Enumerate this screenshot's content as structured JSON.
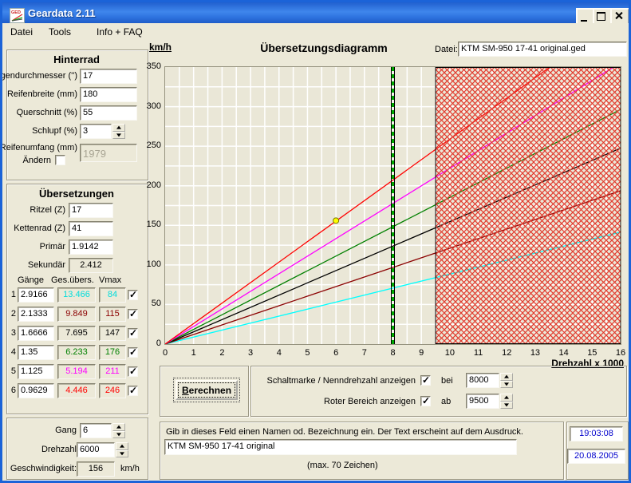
{
  "window": {
    "title": "Geardata 2.11"
  },
  "menu": {
    "items": [
      "Datei",
      "Tools",
      "Info + FAQ"
    ]
  },
  "hinterrad": {
    "title": "Hinterrad",
    "felgendurchmesser": {
      "label": "Felgendurchmesser ('')",
      "value": "17"
    },
    "reifenbreite": {
      "label": "Reifenbreite (mm)",
      "value": "180"
    },
    "querschnitt": {
      "label": "Querschnitt (%)",
      "value": "55"
    },
    "schlupf": {
      "label": "Schlupf (%)",
      "value": "3"
    },
    "reifenumfang": {
      "label": "Reifenumfang (mm)",
      "aendern_label": "Ändern",
      "aendern_checked": false,
      "value": "1979"
    }
  },
  "uebersetzungen": {
    "title": "Übersetzungen",
    "ritzel": {
      "label": "Ritzel (Z)",
      "value": "17"
    },
    "kettenrad": {
      "label": "Kettenrad (Z)",
      "value": "41"
    },
    "primaer": {
      "label": "Primär",
      "value": "1.9142"
    },
    "sekundaer": {
      "label": "Sekundär",
      "value": "2.412"
    },
    "table": {
      "headers": [
        "Gänge",
        "Ges.übers.",
        "Vmax"
      ],
      "rows": [
        {
          "num": "1",
          "ratio": "2.9166",
          "total": "13.466",
          "vmax": "84",
          "color": "#00dcdc",
          "checked": true
        },
        {
          "num": "2",
          "ratio": "2.1333",
          "total": "9.849",
          "vmax": "115",
          "color": "#8b0000",
          "checked": true
        },
        {
          "num": "3",
          "ratio": "1.6666",
          "total": "7.695",
          "vmax": "147",
          "color": "#000000",
          "checked": true
        },
        {
          "num": "4",
          "ratio": "1.35",
          "total": "6.233",
          "vmax": "176",
          "color": "#008000",
          "checked": true
        },
        {
          "num": "5",
          "ratio": "1.125",
          "total": "5.194",
          "vmax": "211",
          "color": "#ff00ff",
          "checked": true
        },
        {
          "num": "6",
          "ratio": "0.9629",
          "total": "4.446",
          "vmax": "246",
          "color": "#ff0000",
          "checked": true
        }
      ]
    }
  },
  "state": {
    "gang": {
      "label": "Gang",
      "value": "6"
    },
    "drehzahl": {
      "label": "Drehzahl",
      "value": "6000"
    },
    "geschwindigkeit": {
      "label": "Geschwindigkeit:",
      "value": "156",
      "unit": "km/h"
    }
  },
  "chart_header": {
    "ylabel": "km/h",
    "title": "Übersetzungsdiagramm",
    "datei_label": "Datei:",
    "datei_value": "KTM SM-950 17-41 original.ged",
    "xlabel": "Drehzahl x 1000"
  },
  "controls": {
    "berechnen_label": "Berechnen",
    "schaltmarke": {
      "label": "Schaltmarke / Nenndrehzahl anzeigen",
      "checked": true,
      "prefix": "bei",
      "value": "8000"
    },
    "roter_bereich": {
      "label": "Roter Bereich anzeigen",
      "checked": true,
      "prefix": "ab",
      "value": "9500"
    }
  },
  "namebox": {
    "instruction": "Gib in dieses Feld einen Namen od. Bezeichnung ein. Der Text erscheint auf dem Ausdruck.",
    "value": "KTM SM-950 17-41 original",
    "note": "(max. 70 Zeichen)"
  },
  "clock": {
    "time": "19:03:08",
    "date": "20.08.2005"
  },
  "chart_data": {
    "type": "line",
    "title": "Übersetzungsdiagramm",
    "xlabel": "Drehzahl x 1000",
    "ylabel": "km/h",
    "xlim": [
      0,
      16
    ],
    "ylim": [
      0,
      350
    ],
    "x_ticks": [
      0,
      1,
      2,
      3,
      4,
      5,
      6,
      7,
      8,
      9,
      10,
      11,
      12,
      13,
      14,
      15,
      16
    ],
    "y_ticks": [
      0,
      50,
      100,
      150,
      200,
      250,
      300,
      350
    ],
    "grid": true,
    "grid_step_x": 0.5,
    "grid_step_y": 25,
    "plot_bg": "#eae7d7",
    "grid_color": "#ffffff",
    "legend_position": "none",
    "series": [
      {
        "name": "Gang 1",
        "color": "#00ffff",
        "slope_kmh_per_1000rpm": 8.84,
        "vmax_kmh": 84
      },
      {
        "name": "Gang 2",
        "color": "#8b0000",
        "slope_kmh_per_1000rpm": 12.11,
        "vmax_kmh": 115
      },
      {
        "name": "Gang 3",
        "color": "#000000",
        "slope_kmh_per_1000rpm": 15.47,
        "vmax_kmh": 147
      },
      {
        "name": "Gang 4",
        "color": "#008000",
        "slope_kmh_per_1000rpm": 18.53,
        "vmax_kmh": 176
      },
      {
        "name": "Gang 5",
        "color": "#ff00ff",
        "slope_kmh_per_1000rpm": 22.21,
        "vmax_kmh": 211
      },
      {
        "name": "Gang 6",
        "color": "#ff0000",
        "slope_kmh_per_1000rpm": 25.89,
        "vmax_kmh": 246
      }
    ],
    "marker": {
      "x": 6,
      "y": 156,
      "fill": "#ffff00",
      "stroke": "#7a7a00"
    },
    "shift_mark": {
      "x": 8,
      "line_color": "#000000",
      "dash_color": "#00a800"
    },
    "red_zone": {
      "from_x": 9.5,
      "to_x": 16,
      "hatch_color": "#e23b2e",
      "border_color": "#000000"
    }
  }
}
